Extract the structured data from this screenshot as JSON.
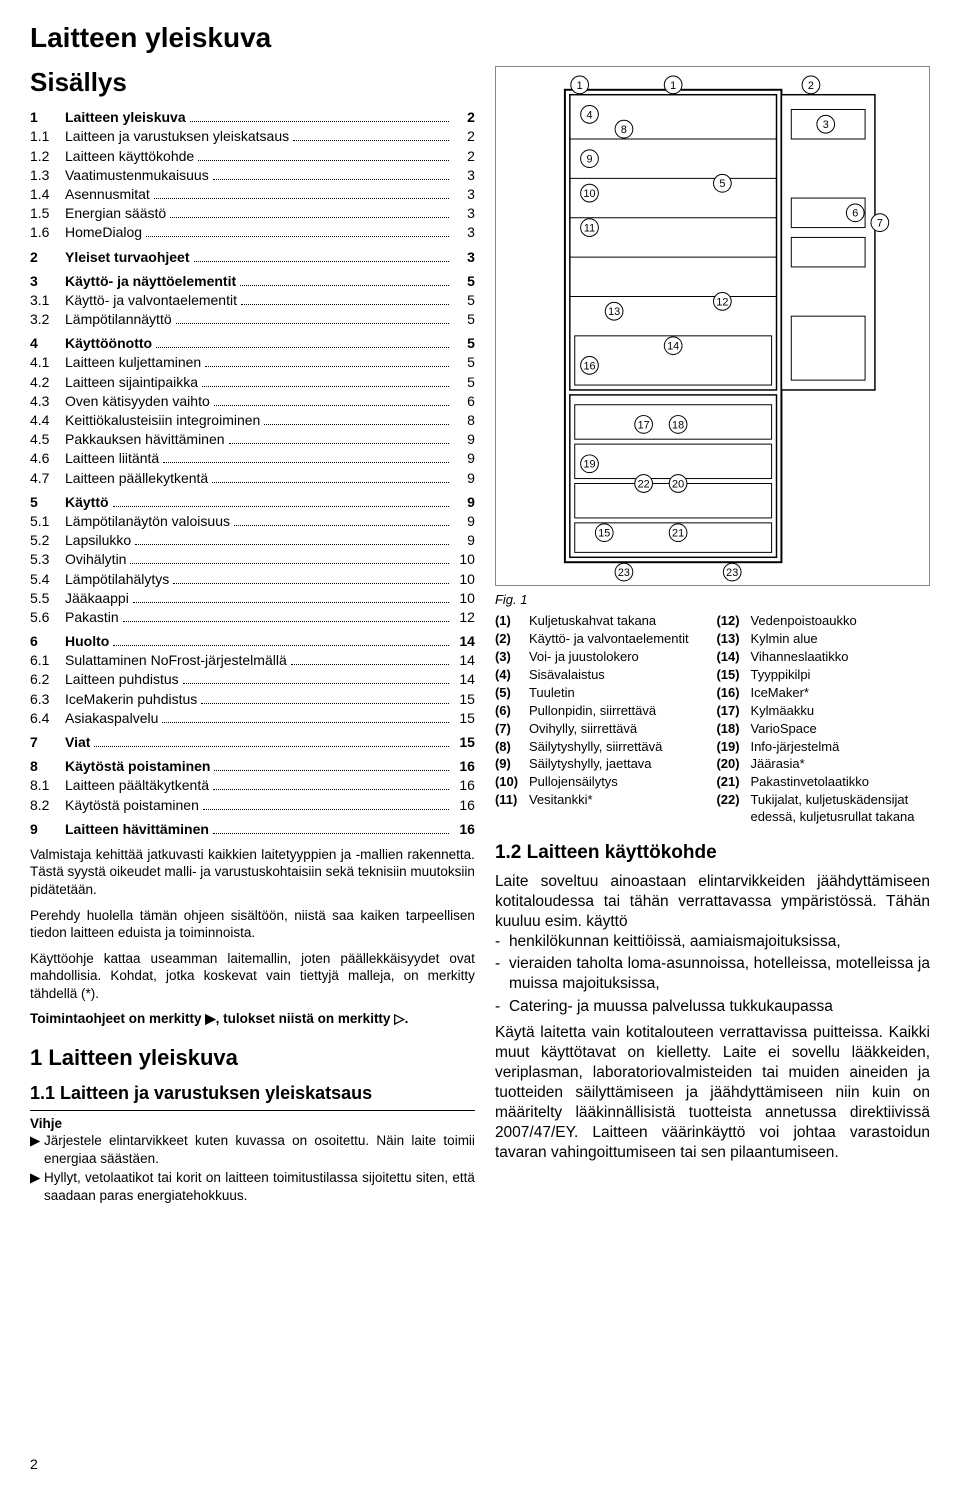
{
  "page_title": "Laitteen yleiskuva",
  "contents_title": "Sisällys",
  "toc": [
    {
      "n": "1",
      "label": "Laitteen yleiskuva",
      "p": "2",
      "bold": true
    },
    {
      "n": "1.1",
      "label": "Laitteen ja varustuksen yleiskatsaus",
      "p": "2",
      "bold": false
    },
    {
      "n": "1.2",
      "label": "Laitteen käyttökohde",
      "p": "2",
      "bold": false
    },
    {
      "n": "1.3",
      "label": "Vaatimustenmukaisuus",
      "p": "3",
      "bold": false
    },
    {
      "n": "1.4",
      "label": "Asennusmitat",
      "p": "3",
      "bold": false
    },
    {
      "n": "1.5",
      "label": "Energian säästö",
      "p": "3",
      "bold": false
    },
    {
      "n": "1.6",
      "label": "HomeDialog",
      "p": "3",
      "bold": false
    },
    {
      "n": "2",
      "label": "Yleiset turvaohjeet",
      "p": "3",
      "bold": true
    },
    {
      "n": "3",
      "label": "Käyttö- ja näyttöelementit",
      "p": "5",
      "bold": true
    },
    {
      "n": "3.1",
      "label": "Käyttö- ja valvontaelementit",
      "p": "5",
      "bold": false
    },
    {
      "n": "3.2",
      "label": "Lämpötilannäyttö",
      "p": "5",
      "bold": false
    },
    {
      "n": "4",
      "label": "Käyttöönotto",
      "p": "5",
      "bold": true
    },
    {
      "n": "4.1",
      "label": "Laitteen kuljettaminen",
      "p": "5",
      "bold": false
    },
    {
      "n": "4.2",
      "label": "Laitteen sijaintipaikka",
      "p": "5",
      "bold": false
    },
    {
      "n": "4.3",
      "label": "Oven kätisyyden vaihto",
      "p": "6",
      "bold": false
    },
    {
      "n": "4.4",
      "label": "Keittiökalusteisiin integroiminen",
      "p": "8",
      "bold": false
    },
    {
      "n": "4.5",
      "label": "Pakkauksen hävittäminen",
      "p": "9",
      "bold": false
    },
    {
      "n": "4.6",
      "label": "Laitteen liitäntä",
      "p": "9",
      "bold": false
    },
    {
      "n": "4.7",
      "label": "Laitteen päällekytkentä",
      "p": "9",
      "bold": false
    },
    {
      "n": "5",
      "label": "Käyttö",
      "p": "9",
      "bold": true
    },
    {
      "n": "5.1",
      "label": "Lämpötilanäytön valoisuus",
      "p": "9",
      "bold": false
    },
    {
      "n": "5.2",
      "label": "Lapsilukko",
      "p": "9",
      "bold": false
    },
    {
      "n": "5.3",
      "label": "Ovihälytin",
      "p": "10",
      "bold": false
    },
    {
      "n": "5.4",
      "label": "Lämpötilahälytys",
      "p": "10",
      "bold": false
    },
    {
      "n": "5.5",
      "label": "Jääkaappi",
      "p": "10",
      "bold": false
    },
    {
      "n": "5.6",
      "label": "Pakastin",
      "p": "12",
      "bold": false
    },
    {
      "n": "6",
      "label": "Huolto",
      "p": "14",
      "bold": true
    },
    {
      "n": "6.1",
      "label": "Sulattaminen NoFrost-järjestelmällä",
      "p": "14",
      "bold": false
    },
    {
      "n": "6.2",
      "label": "Laitteen puhdistus",
      "p": "14",
      "bold": false
    },
    {
      "n": "6.3",
      "label": "IceMakerin puhdistus",
      "p": "15",
      "bold": false
    },
    {
      "n": "6.4",
      "label": "Asiakaspalvelu",
      "p": "15",
      "bold": false
    },
    {
      "n": "7",
      "label": "Viat",
      "p": "15",
      "bold": true
    },
    {
      "n": "8",
      "label": "Käytöstä poistaminen",
      "p": "16",
      "bold": true
    },
    {
      "n": "8.1",
      "label": "Laitteen päältäkytkentä",
      "p": "16",
      "bold": false
    },
    {
      "n": "8.2",
      "label": "Käytöstä poistaminen",
      "p": "16",
      "bold": false
    },
    {
      "n": "9",
      "label": "Laitteen hävittäminen",
      "p": "16",
      "bold": true
    }
  ],
  "paragraphs": [
    "Valmistaja kehittää jatkuvasti kaikkien laitetyyppien ja -mallien rakennetta. Tästä syystä oikeudet malli- ja varustuskohtaisiin sekä teknisiin muutoksiin pidätetään.",
    "Perehdy huolella tämän ohjeen sisältöön, niistä saa kaiken tarpeellisen tiedon laitteen eduista ja toiminnoista.",
    "Käyttöohje kattaa useamman laitemallin, joten päällekkäisyydet ovat mahdollisia. Kohdat, jotka koskevat vain tiettyjä malleja, on merkitty tähdellä (*)."
  ],
  "para_bold": "Toimintaohjeet on merkitty ▶, tulokset niistä on merkitty ▷.",
  "h1_1": "1 Laitteen yleiskuva",
  "h2_11": "1.1 Laitteen ja varustuksen yleiskatsaus",
  "hint_label": "Vihje",
  "hints": [
    "Järjestele elintarvikkeet kuten kuvassa on osoitettu. Näin laite toimii energiaa säästäen.",
    "Hyllyt, vetolaatikot tai korit on laitteen toimitustilassa sijoitettu siten, että saadaan paras energiatehokkuus."
  ],
  "fig_caption": "Fig. 1",
  "legend_left": [
    {
      "n": "(1)",
      "t": "Kuljetuskahvat takana"
    },
    {
      "n": "(2)",
      "t": "Käyttö- ja valvontaelementit"
    },
    {
      "n": "(3)",
      "t": "Voi- ja juustolokero"
    },
    {
      "n": "(4)",
      "t": "Sisävalaistus"
    },
    {
      "n": "(5)",
      "t": "Tuuletin"
    },
    {
      "n": "(6)",
      "t": "Pullonpidin, siirrettävä"
    },
    {
      "n": "(7)",
      "t": "Ovihylly, siirrettävä"
    },
    {
      "n": "(8)",
      "t": "Säilytyshylly, siirrettävä"
    },
    {
      "n": "(9)",
      "t": "Säilytyshylly, jaettava"
    },
    {
      "n": "(10)",
      "t": "Pullojensäilytys"
    },
    {
      "n": "(11)",
      "t": "Vesitankki*"
    }
  ],
  "legend_right": [
    {
      "n": "(12)",
      "t": "Vedenpoistoaukko"
    },
    {
      "n": "(13)",
      "t": "Kylmin alue"
    },
    {
      "n": "(14)",
      "t": "Vihanneslaatikko"
    },
    {
      "n": "(15)",
      "t": "Tyyppikilpi"
    },
    {
      "n": "(16)",
      "t": "IceMaker*"
    },
    {
      "n": "(17)",
      "t": "Kylmäakku"
    },
    {
      "n": "(18)",
      "t": "VarioSpace"
    },
    {
      "n": "(19)",
      "t": "Info-järjestelmä"
    },
    {
      "n": "(20)",
      "t": "Jäärasia*"
    },
    {
      "n": "(21)",
      "t": "Pakastinvetolaatikko"
    },
    {
      "n": "(22)",
      "t": "Tukijalat, kuljetuskädensijat edessä, kuljetusrullat takana"
    }
  ],
  "h2_12": "1.2 Laitteen käyttökohde",
  "body_intro": "Laite soveltuu ainoastaan elintarvikkeiden jäähdyttämiseen kotitaloudessa tai tähän verrattavassa ympäristössä. Tähän kuuluu esim. käyttö",
  "body_bullets": [
    "henkilökunnan keittiöissä, aamiaismajoituksissa,",
    "vieraiden taholta loma-asunnoissa, hotelleissa, motelleissa ja muissa majoituksissa,",
    "Catering- ja muussa palvelussa tukkukaupassa"
  ],
  "body_after": "Käytä laitetta vain kotitalouteen verrattavissa puitteissa. Kaikki muut käyttötavat on kielletty. Laite ei sovellu lääkkeiden, veriplasman, laboratoriovalmisteiden tai muiden aineiden ja tuotteiden säilyttämiseen ja jäähdyttämiseen niin kuin on määritelty lääkinnällisistä tuotteista annetussa direktiivissä 2007/47/EY. Laitteen väärinkäyttö voi johtaa varastoidun tavaran vahingoittumiseen tai sen pilaantumiseen.",
  "page_num": "2",
  "diagram": {
    "callouts": [
      "1",
      "1",
      "2",
      "3",
      "4",
      "5",
      "6",
      "7",
      "8",
      "9",
      "10",
      "11",
      "12",
      "13",
      "14",
      "15",
      "16",
      "17",
      "18",
      "19",
      "20",
      "21",
      "22",
      "23",
      "23"
    ]
  }
}
